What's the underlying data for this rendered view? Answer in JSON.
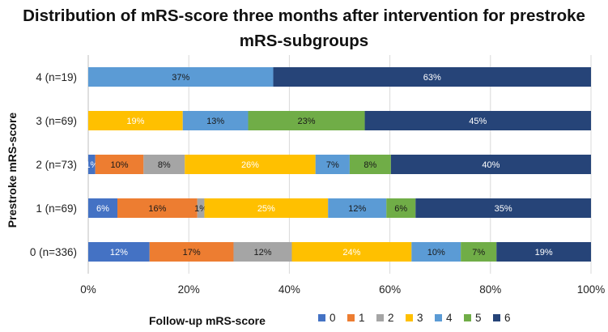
{
  "chart_data": {
    "type": "bar",
    "orientation": "horizontal",
    "stacked": "percent",
    "title": "Distribution of mRS-score three months after intervention for prestroke mRS-subgroups",
    "xlabel": "Follow-up mRS-score",
    "ylabel": "Prestroke mRS-score",
    "xlim": [
      0,
      100
    ],
    "x_ticks": [
      "0%",
      "20%",
      "40%",
      "60%",
      "80%",
      "100%"
    ],
    "categories": [
      "4 (n=19)",
      "3 (n=69)",
      "2 (n=73)",
      "1 (n=69)",
      "0 (n=336)"
    ],
    "legend_position": "bottom",
    "grid": "vertical",
    "series": [
      {
        "name": "0",
        "color": "#4472C4",
        "values": [
          0,
          0,
          1.4,
          5.8,
          12.2
        ],
        "labels": [
          "",
          "",
          "1%",
          "6%",
          "12%"
        ]
      },
      {
        "name": "1",
        "color": "#ED7D31",
        "values": [
          0,
          0,
          9.6,
          15.9,
          16.7
        ],
        "labels": [
          "",
          "",
          "10%",
          "16%",
          "17%"
        ]
      },
      {
        "name": "2",
        "color": "#A5A5A5",
        "values": [
          0,
          0,
          8.2,
          1.4,
          11.6
        ],
        "labels": [
          "",
          "",
          "8%",
          "1%",
          "12%"
        ]
      },
      {
        "name": "3",
        "color": "#FFC000",
        "values": [
          0,
          18.8,
          26.0,
          24.6,
          23.8
        ],
        "labels": [
          "",
          "19%",
          "26%",
          "25%",
          "24%"
        ]
      },
      {
        "name": "4",
        "color": "#5B9BD5",
        "values": [
          36.8,
          13.0,
          6.8,
          11.6,
          9.8
        ],
        "labels": [
          "37%",
          "13%",
          "7%",
          "12%",
          "10%"
        ]
      },
      {
        "name": "5",
        "color": "#70AD47",
        "values": [
          0,
          23.2,
          8.2,
          5.8,
          7.1
        ],
        "labels": [
          "",
          "23%",
          "8%",
          "6%",
          "7%"
        ]
      },
      {
        "name": "6",
        "color": "#264478",
        "values": [
          63.2,
          45.0,
          39.8,
          34.9,
          18.8
        ],
        "labels": [
          "63%",
          "45%",
          "40%",
          "35%",
          "19%"
        ]
      }
    ]
  }
}
